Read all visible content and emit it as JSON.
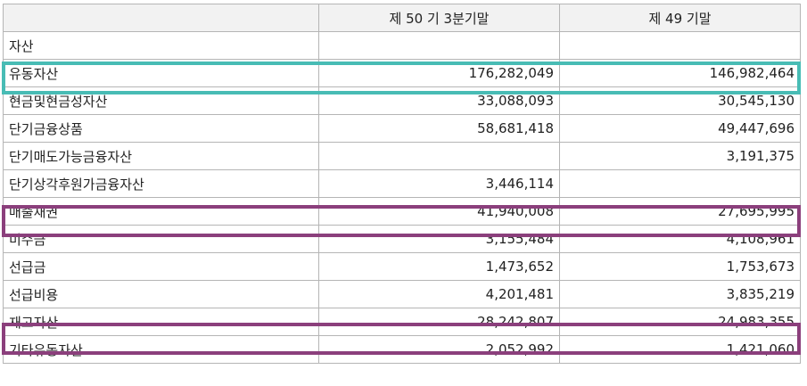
{
  "table": {
    "headers": [
      "",
      "제 50 기 3분기말",
      "제 49 기말"
    ],
    "rows": [
      {
        "label": "자산",
        "level": 0,
        "q": "",
        "prev": ""
      },
      {
        "label": "유동자산",
        "level": 1,
        "q": "176,282,049",
        "prev": "146,982,464"
      },
      {
        "label": "현금및현금성자산",
        "level": 2,
        "q": "33,088,093",
        "prev": "30,545,130"
      },
      {
        "label": "단기금융상품",
        "level": 2,
        "q": "58,681,418",
        "prev": "49,447,696"
      },
      {
        "label": "단기매도가능금융자산",
        "level": 2,
        "q": "",
        "prev": "3,191,375"
      },
      {
        "label": "단기상각후원가금융자산",
        "level": 2,
        "q": "3,446,114",
        "prev": ""
      },
      {
        "label": "매출채권",
        "level": 2,
        "q": "41,940,008",
        "prev": "27,695,995"
      },
      {
        "label": "미수금",
        "level": 2,
        "q": "3,155,484",
        "prev": "4,108,961"
      },
      {
        "label": "선급금",
        "level": 2,
        "q": "1,473,652",
        "prev": "1,753,673"
      },
      {
        "label": "선급비용",
        "level": 2,
        "q": "4,201,481",
        "prev": "3,835,219"
      },
      {
        "label": "재고자산",
        "level": 2,
        "q": "28,242,807",
        "prev": "24,983,355"
      },
      {
        "label": "기타유동자산",
        "level": 2,
        "q": "2,052,992",
        "prev": "1,421,060"
      }
    ]
  },
  "highlights": {
    "teal_color": "#48bcb5",
    "purple_color": "#8b3f7c",
    "rows_highlighted": [
      "유동자산",
      "매출채권",
      "재고자산"
    ]
  }
}
